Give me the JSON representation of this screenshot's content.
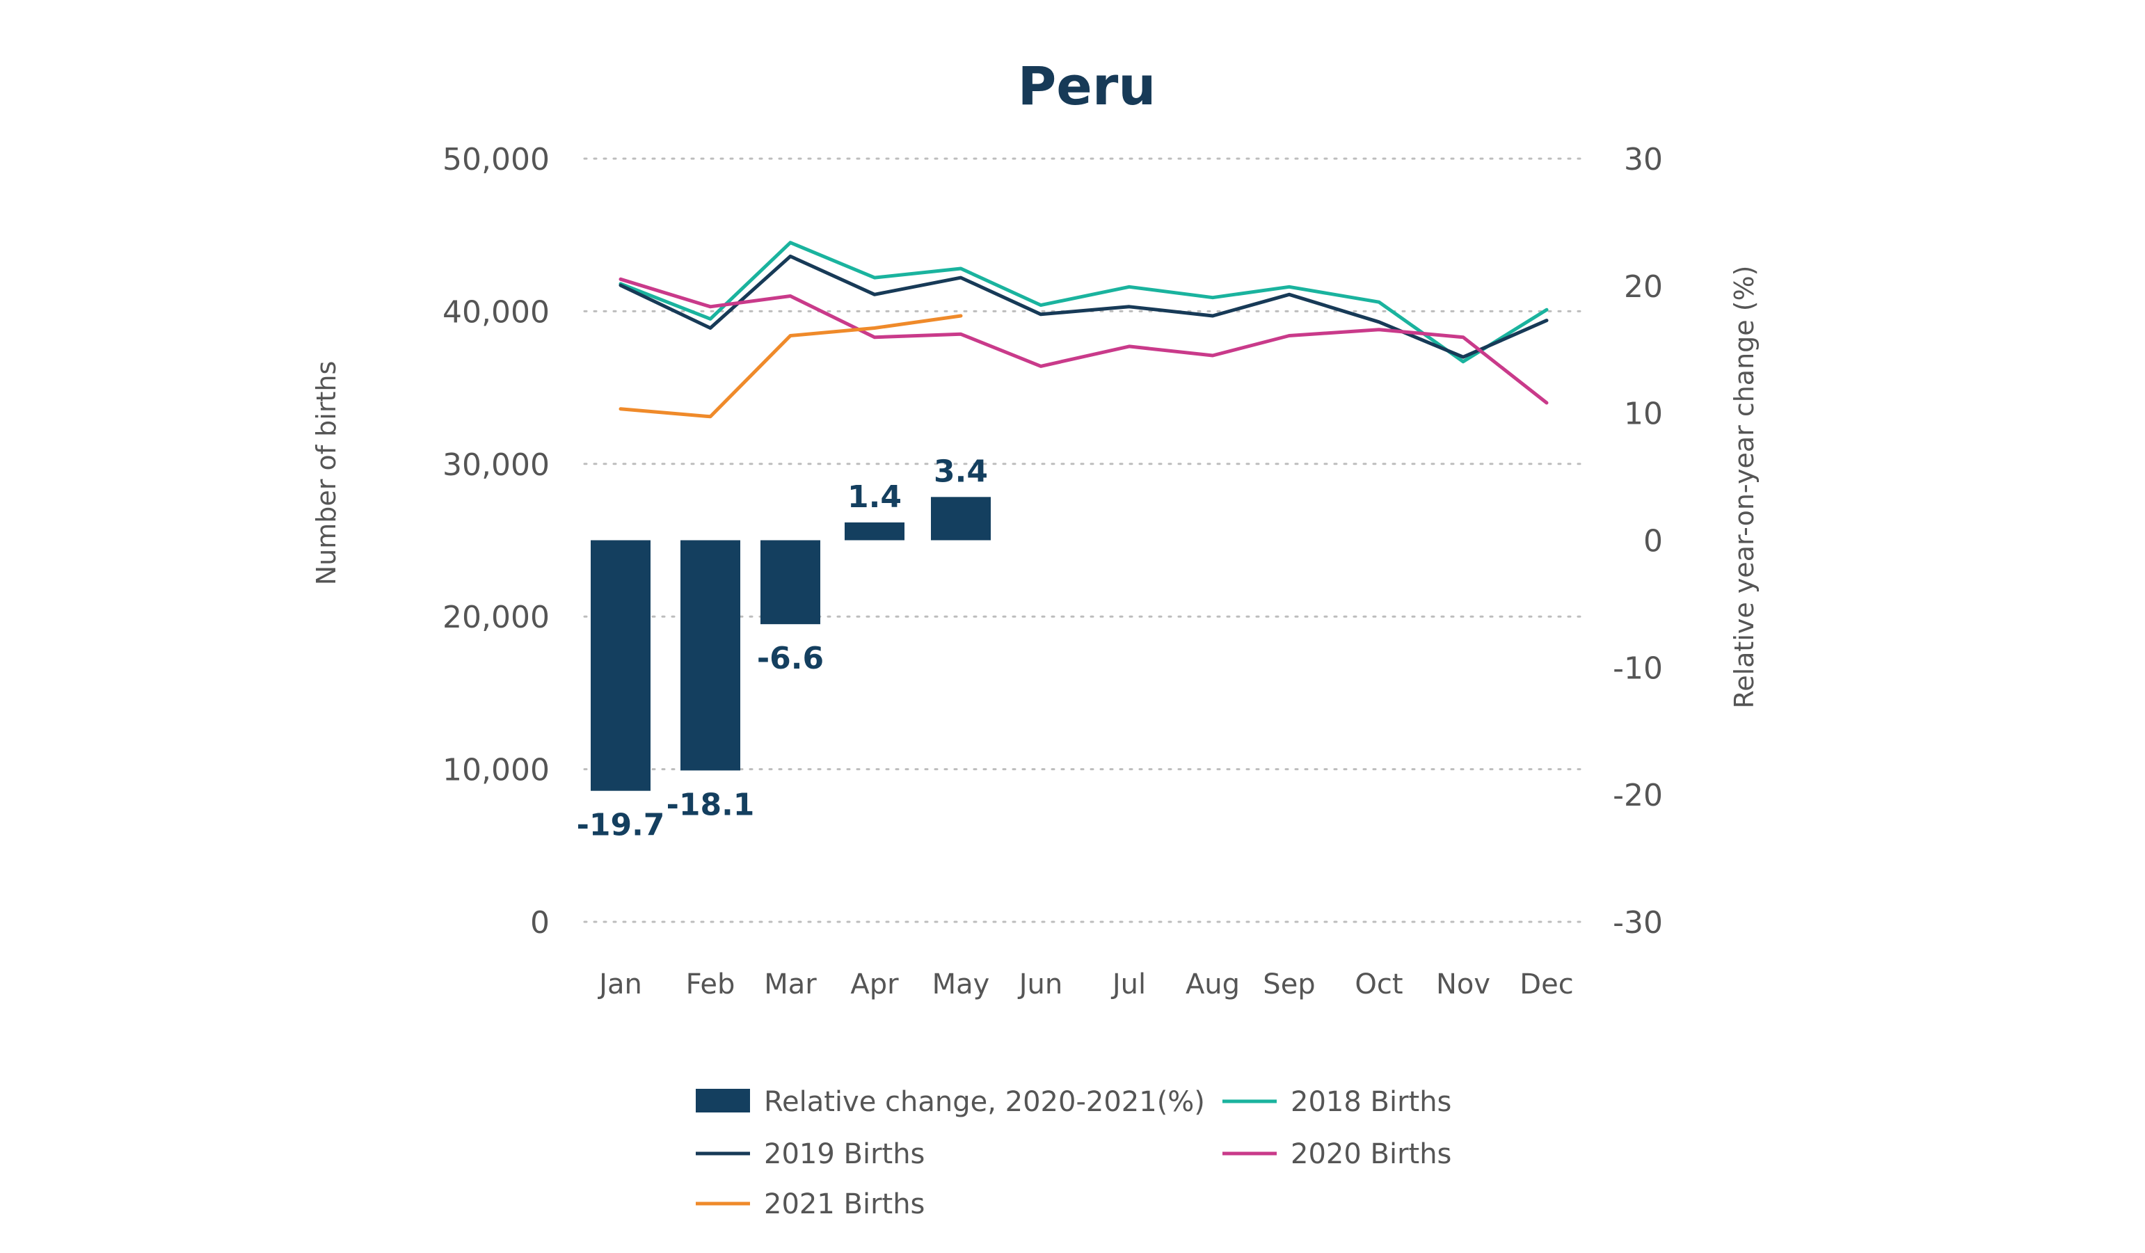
{
  "chart_data": {
    "type": "bar",
    "title": "Peru",
    "categories": [
      "Jan",
      "Feb",
      "Mar",
      "Apr",
      "May",
      "Jun",
      "Jul",
      "Aug",
      "Sep",
      "Oct",
      "Nov",
      "Dec"
    ],
    "y_left": {
      "label": "Number of births",
      "ylim": [
        0,
        50000
      ],
      "ticks": [
        0,
        10000,
        20000,
        30000,
        40000,
        50000
      ],
      "tick_labels": [
        "0",
        "10,000",
        "20,000",
        "30,000",
        "40,000",
        "50,000"
      ]
    },
    "y_right": {
      "label": "Relative year-on-year change (%)",
      "ylim": [
        -30,
        30
      ],
      "ticks": [
        -30,
        -20,
        -10,
        0,
        10,
        20,
        30
      ],
      "tick_labels": [
        "-30",
        "-20",
        "-10",
        "0",
        "10",
        "20",
        "30"
      ]
    },
    "grid": "horizontal-dotted",
    "bars": {
      "name": "Relative change, 2020-2021(%)",
      "axis": "right",
      "values": [
        -19.7,
        -18.1,
        -6.6,
        1.4,
        3.4,
        null,
        null,
        null,
        null,
        null,
        null,
        null
      ],
      "labels": [
        "-19.7",
        "-18.1",
        "-6.6",
        "1.4",
        "3.4"
      ]
    },
    "series": [
      {
        "name": "2018 Births",
        "axis": "left",
        "values": [
          41800,
          39500,
          44500,
          42200,
          42800,
          40400,
          41600,
          40900,
          41600,
          40600,
          36700,
          40100
        ]
      },
      {
        "name": "2019 Births",
        "axis": "left",
        "values": [
          41700,
          38900,
          43600,
          41100,
          42200,
          39800,
          40300,
          39700,
          41100,
          39300,
          37000,
          39400
        ]
      },
      {
        "name": "2020 Births",
        "axis": "left",
        "values": [
          42100,
          40300,
          41000,
          38300,
          38500,
          36400,
          37700,
          37100,
          38400,
          38800,
          38300,
          34000
        ]
      },
      {
        "name": "2021 Births",
        "axis": "left",
        "values": [
          33600,
          33100,
          38400,
          38900,
          39700,
          null,
          null,
          null,
          null,
          null,
          null,
          null
        ]
      }
    ],
    "legend": {
      "placement": "bottom",
      "entries": [
        {
          "name": "Relative change, 2020-2021(%)",
          "kind": "bar"
        },
        {
          "name": "2018 Births",
          "kind": "line"
        },
        {
          "name": "2019 Births",
          "kind": "line"
        },
        {
          "name": "2020 Births",
          "kind": "line"
        },
        {
          "name": "2021 Births",
          "kind": "line"
        }
      ]
    },
    "colors": {
      "bars": "#143f5f",
      "2018 Births": "#1ab39e",
      "2019 Births": "#173a57",
      "2020 Births": "#c93a8a",
      "2021 Births": "#ef8a2a",
      "title": "#173a57",
      "grid": "#bdbdbd",
      "text": "#555555"
    }
  }
}
